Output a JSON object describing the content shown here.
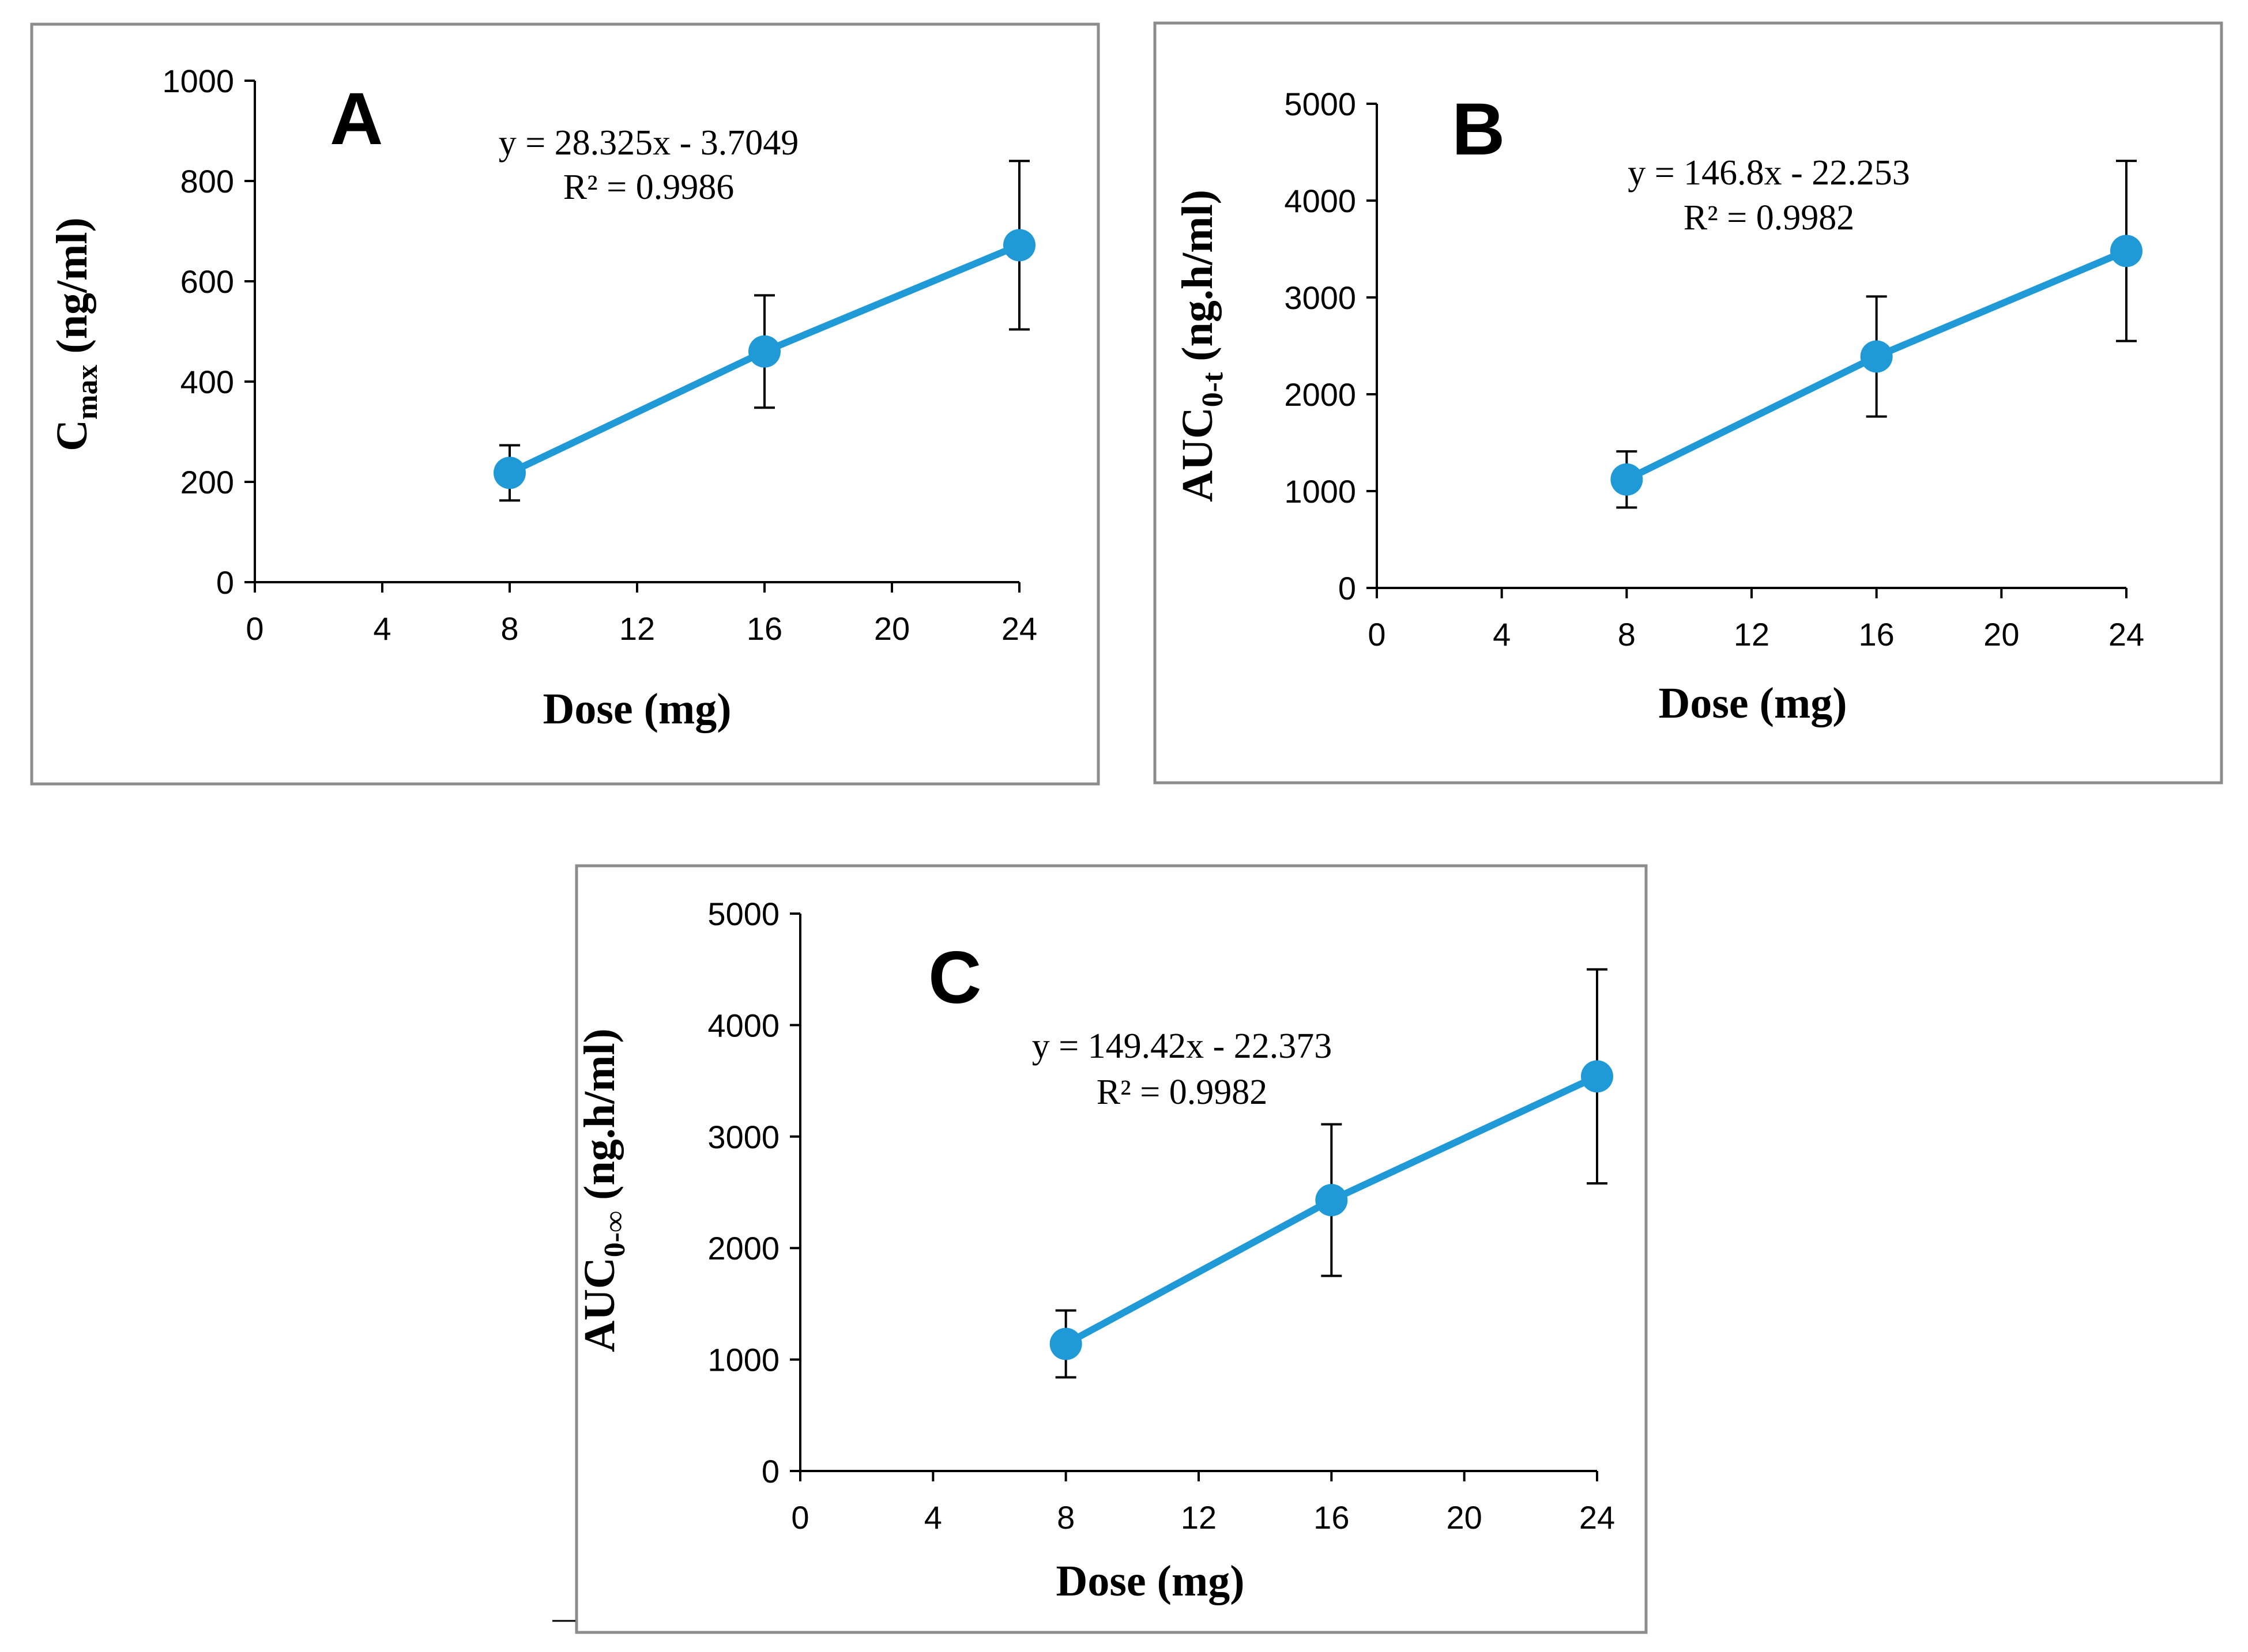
{
  "chart_data": [
    {
      "id": "A",
      "type": "scatter",
      "panel_label": "A",
      "x": [
        8,
        16,
        24
      ],
      "values": [
        218,
        460,
        672
      ],
      "error_plus": [
        55,
        112,
        168
      ],
      "error_minus": [
        55,
        112,
        168
      ],
      "xlim": [
        0,
        24
      ],
      "ylim": [
        0,
        1000
      ],
      "xticks": [
        0,
        4,
        8,
        12,
        16,
        20,
        24
      ],
      "yticks": [
        0,
        200,
        400,
        600,
        800,
        1000
      ],
      "xtick_labels": [
        "0",
        "4",
        "8",
        "12",
        "16",
        "20",
        "24"
      ],
      "ytick_labels": [
        "0",
        "200",
        "400",
        "600",
        "800",
        "1000"
      ],
      "xlabel": "Dose (mg)",
      "ylabel_main": "C",
      "ylabel_sub": "max",
      "ylabel_rest": " (ng/ml)",
      "trendline": {
        "equation": "y = 28.325x - 3.7049",
        "r2": "R² = 0.9986",
        "slope": 28.325,
        "intercept": -3.7049
      },
      "grid": false,
      "color": "#1f9ad6"
    },
    {
      "id": "B",
      "type": "scatter",
      "panel_label": "B",
      "x": [
        8,
        16,
        24
      ],
      "values": [
        1120,
        2390,
        3480
      ],
      "error_plus": [
        290,
        620,
        930
      ],
      "error_minus": [
        290,
        620,
        930
      ],
      "xlim": [
        0,
        24
      ],
      "ylim": [
        0,
        5000
      ],
      "xticks": [
        0,
        4,
        8,
        12,
        16,
        20,
        24
      ],
      "yticks": [
        0,
        1000,
        2000,
        3000,
        4000,
        5000
      ],
      "xtick_labels": [
        "0",
        "4",
        "8",
        "12",
        "16",
        "20",
        "24"
      ],
      "ytick_labels": [
        "0",
        "1000",
        "2000",
        "3000",
        "4000",
        "5000"
      ],
      "xlabel": "Dose (mg)",
      "ylabel_main": "AUC",
      "ylabel_sub": "0-t",
      "ylabel_rest": " (ng.h/ml)",
      "trendline": {
        "equation": "y = 146.8x - 22.253",
        "r2": "R² = 0.9982",
        "slope": 146.8,
        "intercept": -22.253
      },
      "grid": false,
      "color": "#1f9ad6"
    },
    {
      "id": "C",
      "type": "scatter",
      "panel_label": "C",
      "x": [
        8,
        16,
        24
      ],
      "values": [
        1140,
        2430,
        3540
      ],
      "error_plus": [
        300,
        680,
        960
      ],
      "error_minus": [
        300,
        680,
        960
      ],
      "xlim": [
        0,
        24
      ],
      "ylim": [
        0,
        5000
      ],
      "xticks": [
        0,
        4,
        8,
        12,
        16,
        20,
        24
      ],
      "yticks": [
        0,
        1000,
        2000,
        3000,
        4000,
        5000
      ],
      "xtick_labels": [
        "0",
        "4",
        "8",
        "12",
        "16",
        "20",
        "24"
      ],
      "ytick_labels": [
        "0",
        "1000",
        "2000",
        "3000",
        "4000",
        "5000"
      ],
      "xlabel": "Dose (mg)",
      "ylabel_main": "AUC",
      "ylabel_sub": "0-∞",
      "ylabel_rest": " (ng.h/ml)",
      "trendline": {
        "equation": "y = 149.42x - 22.373",
        "r2": "R² = 0.9982",
        "slope": 149.42,
        "intercept": -22.373
      },
      "grid": false,
      "color": "#1f9ad6"
    }
  ]
}
